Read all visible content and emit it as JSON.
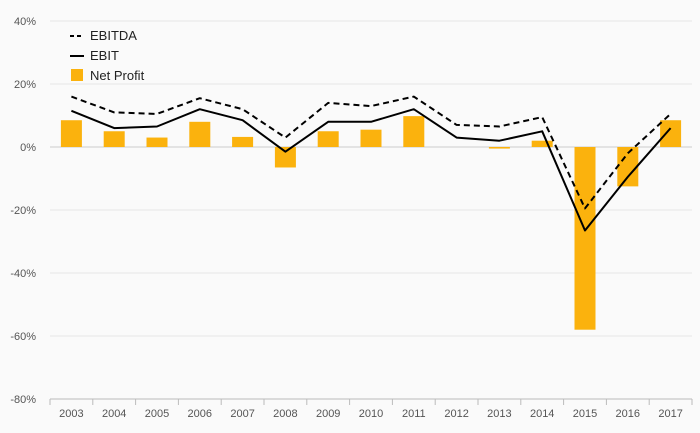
{
  "chart_data": {
    "type": "bar",
    "categories": [
      "2003",
      "2004",
      "2005",
      "2006",
      "2007",
      "2008",
      "2009",
      "2010",
      "2011",
      "2012",
      "2013",
      "2014",
      "2015",
      "2016",
      "2017"
    ],
    "series": [
      {
        "name": "EBITDA",
        "kind": "line",
        "style": "dashed",
        "color": "#000000",
        "values": [
          16,
          11,
          10.5,
          15.5,
          12,
          3,
          14,
          13,
          16,
          7,
          6.5,
          9.5,
          -19.5,
          -2,
          10.5
        ]
      },
      {
        "name": "EBIT",
        "kind": "line",
        "style": "solid",
        "color": "#000000",
        "values": [
          11.5,
          6,
          6.5,
          12,
          8.5,
          -1.5,
          8,
          8,
          12,
          3,
          2,
          5,
          -26.5,
          -9.5,
          6
        ]
      },
      {
        "name": "Net Profit",
        "kind": "bar",
        "color": "#FBB20D",
        "values": [
          8.5,
          5,
          3,
          8,
          3.2,
          -6.5,
          5,
          5.5,
          9.8,
          0,
          -0.5,
          2,
          -58,
          -12.5,
          8.5
        ]
      }
    ],
    "yticks": [
      "40%",
      "20%",
      "0%",
      "-20%",
      "-40%",
      "-60%",
      "-80%"
    ],
    "ylim": [
      -80,
      40
    ],
    "grid": true,
    "legend_position": "top-left",
    "title": "",
    "xlabel": "",
    "ylabel": ""
  }
}
